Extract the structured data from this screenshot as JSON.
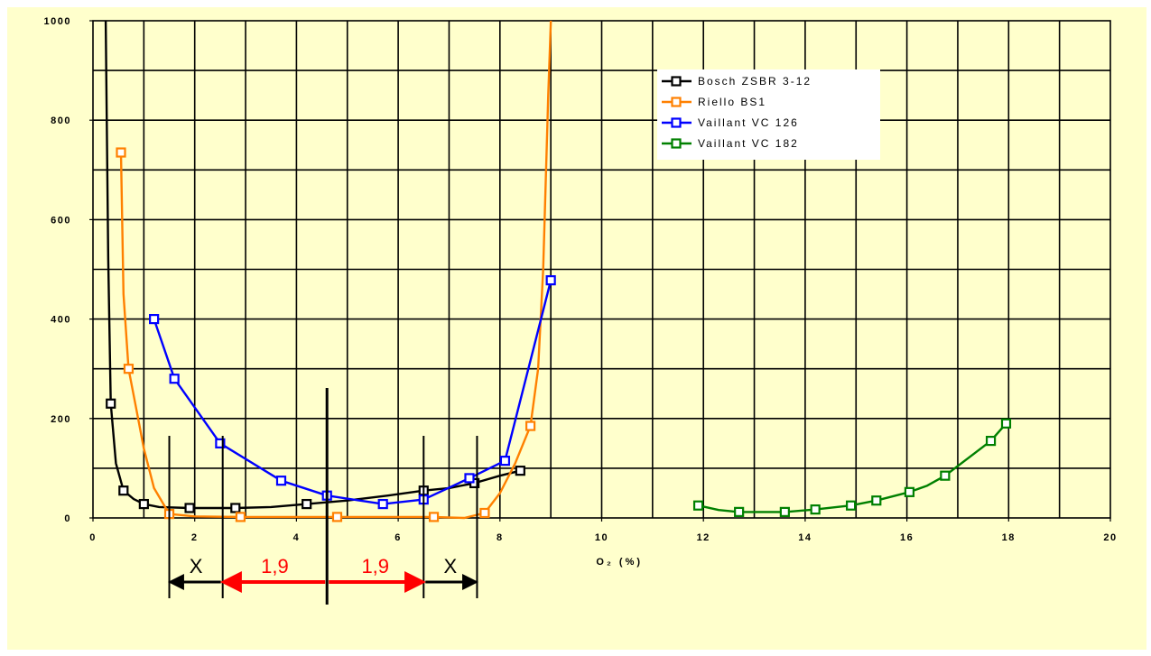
{
  "chart_data": {
    "type": "line",
    "title": "",
    "xlabel": "O₂ (%)",
    "ylabel": "",
    "xlim": [
      0,
      20
    ],
    "ylim": [
      0,
      1000
    ],
    "x_ticks": [
      0,
      2,
      4,
      6,
      8,
      10,
      12,
      14,
      16,
      18,
      20
    ],
    "y_ticks": [
      0,
      200,
      400,
      600,
      800,
      1000
    ],
    "grid": true,
    "legend_position": "top-right",
    "background_color": "#ffffcc",
    "series": [
      {
        "name": "Bosch ZSBR 3-12",
        "color": "#000000",
        "marker": "square",
        "points": [
          [
            0.35,
            230
          ],
          [
            0.6,
            55
          ],
          [
            1.0,
            28
          ],
          [
            1.9,
            20
          ],
          [
            2.8,
            20
          ],
          [
            4.2,
            28
          ],
          [
            6.5,
            55
          ],
          [
            7.5,
            70
          ],
          [
            8.4,
            95
          ]
        ],
        "curve": [
          [
            0.25,
            1000
          ],
          [
            0.3,
            520
          ],
          [
            0.35,
            230
          ],
          [
            0.45,
            110
          ],
          [
            0.6,
            55
          ],
          [
            0.8,
            38
          ],
          [
            1.0,
            28
          ],
          [
            1.3,
            22
          ],
          [
            1.9,
            20
          ],
          [
            2.8,
            20
          ],
          [
            3.5,
            22
          ],
          [
            4.2,
            28
          ],
          [
            5.0,
            35
          ],
          [
            5.8,
            45
          ],
          [
            6.5,
            55
          ],
          [
            7.0,
            60
          ],
          [
            7.5,
            70
          ],
          [
            8.0,
            85
          ],
          [
            8.4,
            95
          ]
        ]
      },
      {
        "name": "Riello BS1",
        "color": "#ff8000",
        "marker": "square",
        "points": [
          [
            0.55,
            735
          ],
          [
            0.7,
            300
          ],
          [
            1.5,
            8
          ],
          [
            2.9,
            2
          ],
          [
            4.8,
            2
          ],
          [
            6.7,
            2
          ],
          [
            7.7,
            10
          ],
          [
            8.6,
            185
          ]
        ],
        "curve": [
          [
            0.55,
            735
          ],
          [
            0.6,
            450
          ],
          [
            0.7,
            300
          ],
          [
            0.85,
            220
          ],
          [
            1.0,
            140
          ],
          [
            1.2,
            60
          ],
          [
            1.5,
            8
          ],
          [
            2.0,
            3
          ],
          [
            2.9,
            2
          ],
          [
            4.8,
            2
          ],
          [
            6.7,
            2
          ],
          [
            7.3,
            0
          ],
          [
            7.7,
            10
          ],
          [
            8.0,
            50
          ],
          [
            8.3,
            110
          ],
          [
            8.6,
            185
          ],
          [
            8.75,
            300
          ],
          [
            8.85,
            500
          ],
          [
            8.95,
            850
          ],
          [
            9.0,
            1000
          ]
        ]
      },
      {
        "name": "Vaillant VC 126",
        "color": "#0000ff",
        "marker": "square",
        "points": [
          [
            1.2,
            400
          ],
          [
            1.6,
            280
          ],
          [
            2.5,
            150
          ],
          [
            3.7,
            75
          ],
          [
            4.6,
            45
          ],
          [
            5.7,
            28
          ],
          [
            6.5,
            37
          ],
          [
            7.4,
            80
          ],
          [
            8.1,
            115
          ],
          [
            9.0,
            478
          ]
        ],
        "curve": [
          [
            1.2,
            400
          ],
          [
            1.6,
            280
          ],
          [
            2.5,
            150
          ],
          [
            3.7,
            75
          ],
          [
            4.6,
            45
          ],
          [
            5.7,
            28
          ],
          [
            6.5,
            37
          ],
          [
            7.4,
            80
          ],
          [
            8.1,
            115
          ],
          [
            9.0,
            478
          ]
        ]
      },
      {
        "name": "Vaillant VC 182",
        "color": "#008000",
        "marker": "square",
        "points": [
          [
            11.9,
            25
          ],
          [
            12.7,
            12
          ],
          [
            13.6,
            12
          ],
          [
            14.2,
            17
          ],
          [
            14.9,
            25
          ],
          [
            15.4,
            35
          ],
          [
            16.05,
            52
          ],
          [
            16.75,
            85
          ],
          [
            17.65,
            155
          ],
          [
            17.95,
            190
          ]
        ],
        "curve": [
          [
            11.9,
            25
          ],
          [
            12.3,
            16
          ],
          [
            12.7,
            12
          ],
          [
            13.6,
            12
          ],
          [
            14.2,
            17
          ],
          [
            14.9,
            25
          ],
          [
            15.4,
            35
          ],
          [
            16.05,
            52
          ],
          [
            16.4,
            65
          ],
          [
            16.75,
            85
          ],
          [
            17.2,
            120
          ],
          [
            17.65,
            155
          ],
          [
            17.95,
            190
          ]
        ]
      }
    ],
    "annotations": {
      "brackets": [
        {
          "label": "X",
          "from": 1.5,
          "to": 2.55,
          "color": "#000000"
        },
        {
          "label": "1,9",
          "from": 2.55,
          "to": 4.6,
          "color": "#ff0000"
        },
        {
          "label": "1,9",
          "from": 4.6,
          "to": 6.5,
          "color": "#ff0000"
        },
        {
          "label": "X",
          "from": 6.5,
          "to": 7.55,
          "color": "#000000"
        }
      ],
      "vertical_marks": [
        {
          "x": 1.5,
          "color": "#000000"
        },
        {
          "x": 2.55,
          "color": "#000000"
        },
        {
          "x": 4.6,
          "color": "#000000"
        },
        {
          "x": 6.5,
          "color": "#000000"
        },
        {
          "x": 7.55,
          "color": "#000000"
        }
      ]
    }
  }
}
